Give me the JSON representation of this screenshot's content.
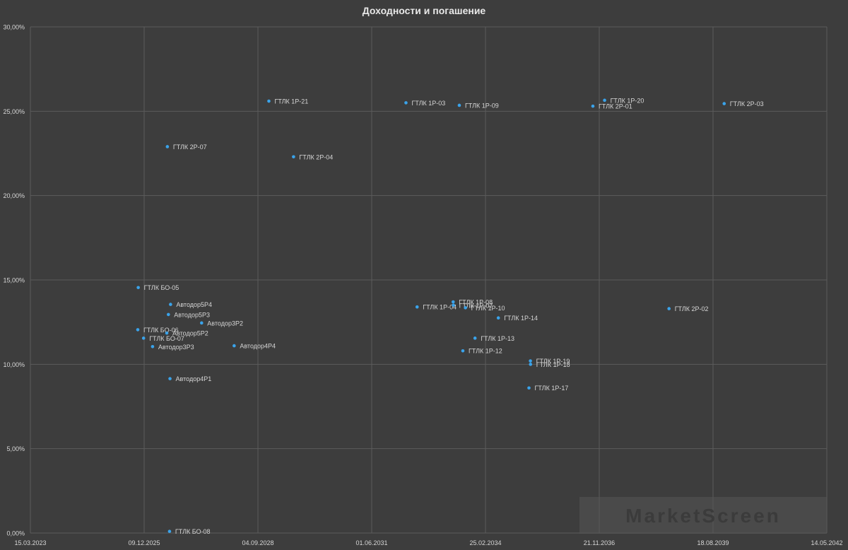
{
  "chart_data": {
    "type": "scatter",
    "title": "Доходности и погашение",
    "xlabel": "",
    "ylabel": "",
    "x_axis": {
      "type": "date",
      "min": "15.03.2023",
      "max": "14.05.2042",
      "ticks": [
        "15.03.2023",
        "09.12.2025",
        "04.09.2028",
        "01.06.2031",
        "25.02.2034",
        "21.11.2036",
        "18.08.2039",
        "14.05.2042"
      ]
    },
    "y_axis": {
      "min": 0,
      "max": 30,
      "ticks": [
        "0,00%",
        "5,00%",
        "10,00%",
        "15,00%",
        "20,00%",
        "25,00%",
        "30,00%"
      ]
    },
    "grid": true,
    "legend": "none",
    "colors": {
      "background": "#3d3d3d",
      "grid": "#5c5c5c",
      "point": "#3aa3ea",
      "label": "#d6d6d6",
      "axis_text": "#d6d6d6"
    },
    "points": [
      {
        "label": "ГТЛК 1Р-21",
        "x": "09.12.2028",
        "y": 25.6
      },
      {
        "label": "ГТЛК 1Р-03",
        "x": "28.03.2032",
        "y": 25.5
      },
      {
        "label": "ГТЛК 1Р-09",
        "x": "10.07.2033",
        "y": 25.35
      },
      {
        "label": "ГТЛК 1Р-20",
        "x": "07.01.2037",
        "y": 25.65
      },
      {
        "label": "ГТЛК 2Р-01",
        "x": "26.09.2036",
        "y": 25.3
      },
      {
        "label": "ГТЛК 2Р-03",
        "x": "24.11.2039",
        "y": 25.45
      },
      {
        "label": "ГТЛК 2Р-07",
        "x": "01.07.2026",
        "y": 22.9
      },
      {
        "label": "ГТЛК 2Р-04",
        "x": "14.07.2029",
        "y": 22.3
      },
      {
        "label": "ГТЛК БО-05",
        "x": "18.10.2025",
        "y": 14.55
      },
      {
        "label": "Автодор5Р4",
        "x": "29.07.2026",
        "y": 13.55
      },
      {
        "label": "Автодор5Р3",
        "x": "10.07.2026",
        "y": 12.95
      },
      {
        "label": "Автодор3Р2",
        "x": "28.04.2027",
        "y": 12.45
      },
      {
        "label": "ГТЛК БО-06",
        "x": "14.10.2025",
        "y": 12.05
      },
      {
        "label": "Автодор5Р2",
        "x": "26.06.2026",
        "y": 11.85
      },
      {
        "label": "ГТЛК БО-07",
        "x": "04.12.2025",
        "y": 11.55
      },
      {
        "label": "Автодор3Р3",
        "x": "21.02.2026",
        "y": 11.05
      },
      {
        "label": "Автодор4Р4",
        "x": "08.02.2028",
        "y": 11.1
      },
      {
        "label": "Автодор4Р1",
        "x": "24.07.2026",
        "y": 9.15
      },
      {
        "label": "ГТЛК БО-08",
        "x": "20.07.2026",
        "y": 0.1
      },
      {
        "label": "ГТЛК 1Р-04",
        "x": "04.07.2032",
        "y": 13.4
      },
      {
        "label": "ГТЛК 1Р-08",
        "x": "17.05.2033",
        "y": 13.7
      },
      {
        "label": "ГТЛК 1Р-07",
        "x": "19.05.2033",
        "y": 13.5
      },
      {
        "label": "ГТЛК 1Р-10",
        "x": "02.09.2033",
        "y": 13.35
      },
      {
        "label": "ГТЛК 1Р-14",
        "x": "18.06.2034",
        "y": 12.75
      },
      {
        "label": "ГТЛК 2Р-02",
        "x": "27.07.2038",
        "y": 13.3
      },
      {
        "label": "ГТЛК 1Р-13",
        "x": "25.11.2033",
        "y": 11.55
      },
      {
        "label": "ГТЛК 1Р-12",
        "x": "10.08.2033",
        "y": 10.8
      },
      {
        "label": "ГТЛК 1Р-19",
        "x": "27.03.2035",
        "y": 10.2
      },
      {
        "label": "ГТЛК 1Р-18",
        "x": "28.03.2035",
        "y": 10.0
      },
      {
        "label": "ГТЛК 1Р-17",
        "x": "14.03.2035",
        "y": 8.6
      }
    ]
  },
  "watermark": "MarketScreen"
}
